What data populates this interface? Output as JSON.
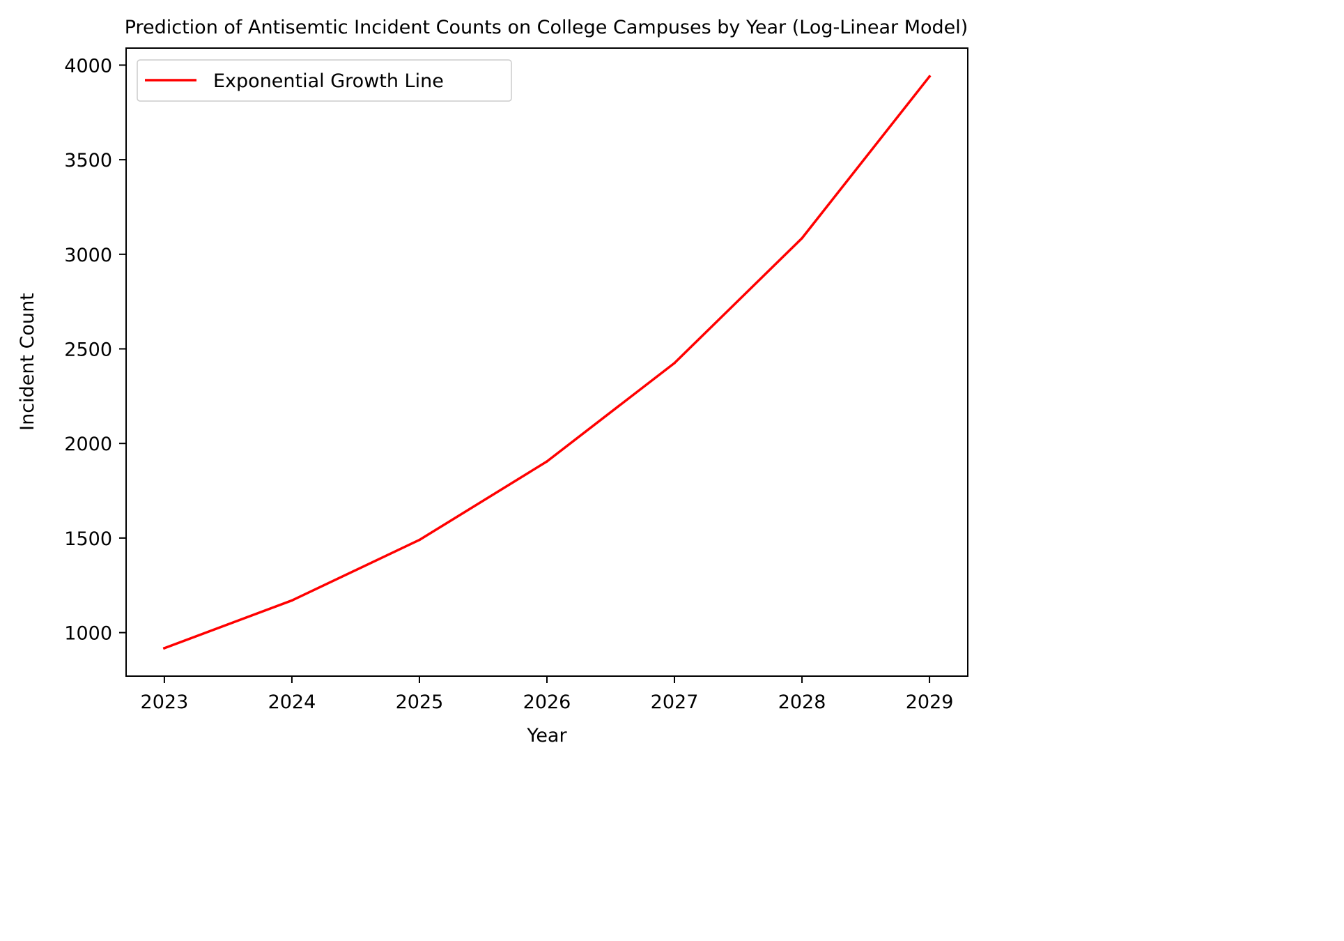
{
  "chart_data": {
    "type": "line",
    "title": "Prediction of Antisemtic Incident Counts on College Campuses by Year (Log-Linear Model)",
    "xlabel": "Year",
    "ylabel": "Incident Count",
    "x": [
      2023,
      2024,
      2025,
      2026,
      2027,
      2028,
      2029
    ],
    "x_ticks": [
      "2023",
      "2024",
      "2025",
      "2026",
      "2027",
      "2028",
      "2029"
    ],
    "y_ticks": [
      1000,
      1500,
      2000,
      2500,
      3000,
      3500,
      4000
    ],
    "xlim": [
      2022.7,
      2029.3
    ],
    "ylim": [
      770,
      4090
    ],
    "grid": false,
    "legend_position": "upper-left",
    "series": [
      {
        "name": "Exponential Growth Line",
        "color": "#ff0000",
        "values": [
          918,
          1170,
          1490,
          1905,
          2425,
          3085,
          3940
        ]
      }
    ]
  }
}
